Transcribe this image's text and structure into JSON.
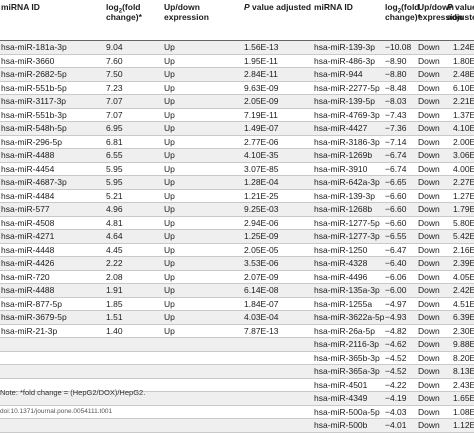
{
  "header": {
    "col1": "miRNA ID",
    "col2_main": "log",
    "col2_sub": "2",
    "col2_rest_1": "(fold",
    "col2_rest_2": "change)*",
    "col3_line1": "Up/down",
    "col3_line2": "expression",
    "col4_p": "P",
    "col4_rest": "value adjusted",
    "col5": "miRNA ID",
    "col6_main": "log",
    "col6_sub": "2",
    "col6_rest_1": "(fold",
    "col6_rest_2": "change)*",
    "col7_line1": "Up/down",
    "col7_line2": "expression",
    "col8_p": "P",
    "col8_line1": "value",
    "col8_line2": "adjusted"
  },
  "rows": [
    {
      "a_id": "hsa-miR-181a-3p",
      "a_fc": "9.04",
      "a_dir": "Up",
      "a_p": "1.56E-13",
      "b_id": "hsa-miR-139-3p",
      "b_fc": "−10.08",
      "b_dir": "Down",
      "b_p": "1.24E-"
    },
    {
      "a_id": "hsa-miR-3660",
      "a_fc": "7.60",
      "a_dir": "Up",
      "a_p": "1.95E-11",
      "b_id": "hsa-miR-486-3p",
      "b_fc": "−8.90",
      "b_dir": "Down",
      "b_p": "1.80E-"
    },
    {
      "a_id": "hsa-miR-2682-5p",
      "a_fc": "7.50",
      "a_dir": "Up",
      "a_p": "2.84E-11",
      "b_id": "hsa-miR-944",
      "b_fc": "−8.80",
      "b_dir": "Down",
      "b_p": "2.48E-"
    },
    {
      "a_id": "hsa-miR-551b-5p",
      "a_fc": "7.23",
      "a_dir": "Up",
      "a_p": "9.63E-09",
      "b_id": "hsa-miR-2277-5p",
      "b_fc": "−8.48",
      "b_dir": "Down",
      "b_p": "6.10E-"
    },
    {
      "a_id": "hsa-miR-3117-3p",
      "a_fc": "7.07",
      "a_dir": "Up",
      "a_p": "2.05E-09",
      "b_id": "hsa-miR-139-5p",
      "b_fc": "−8.03",
      "b_dir": "Down",
      "b_p": "2.21E-"
    },
    {
      "a_id": "hsa-miR-551b-3p",
      "a_fc": "7.07",
      "a_dir": "Up",
      "a_p": "7.19E-11",
      "b_id": "hsa-miR-4769-3p",
      "b_fc": "−7.43",
      "b_dir": "Down",
      "b_p": "1.37E-"
    },
    {
      "a_id": "hsa-miR-548h-5p",
      "a_fc": "6.95",
      "a_dir": "Up",
      "a_p": "1.49E-07",
      "b_id": "hsa-miR-4427",
      "b_fc": "−7.36",
      "b_dir": "Down",
      "b_p": "4.10E-"
    },
    {
      "a_id": "hsa-miR-296-5p",
      "a_fc": "6.81",
      "a_dir": "Up",
      "a_p": "2.77E-06",
      "b_id": "hsa-miR-3186-3p",
      "b_fc": "−7.14",
      "b_dir": "Down",
      "b_p": "2.00E-"
    },
    {
      "a_id": "hsa-miR-4488",
      "a_fc": "6.55",
      "a_dir": "Up",
      "a_p": "4.10E-35",
      "b_id": "hsa-miR-1269b",
      "b_fc": "−6.74",
      "b_dir": "Down",
      "b_p": "3.06E-"
    },
    {
      "a_id": "hsa-miR-4454",
      "a_fc": "5.95",
      "a_dir": "Up",
      "a_p": "3.07E-85",
      "b_id": "hsa-miR-3910",
      "b_fc": "−6.74",
      "b_dir": "Down",
      "b_p": "4.00E-"
    },
    {
      "a_id": "hsa-miR-4687-3p",
      "a_fc": "5.95",
      "a_dir": "Up",
      "a_p": "1.28E-04",
      "b_id": "hsa-miR-642a-3p",
      "b_fc": "−6.65",
      "b_dir": "Down",
      "b_p": "2.27E-"
    },
    {
      "a_id": "hsa-miR-4484",
      "a_fc": "5.21",
      "a_dir": "Up",
      "a_p": "1.21E-25",
      "b_id": "hsa-miR-139-3p",
      "b_fc": "−6.60",
      "b_dir": "Down",
      "b_p": "1.27E-"
    },
    {
      "a_id": "hsa-miR-577",
      "a_fc": "4.96",
      "a_dir": "Up",
      "a_p": "9.25E-03",
      "b_id": "hsa-miR-1268b",
      "b_fc": "−6.60",
      "b_dir": "Down",
      "b_p": "1.79E-"
    },
    {
      "a_id": "hsa-miR-4508",
      "a_fc": "4.81",
      "a_dir": "Up",
      "a_p": "2.94E-06",
      "b_id": "hsa-miR-1277-5p",
      "b_fc": "−6.60",
      "b_dir": "Down",
      "b_p": "5.80E-"
    },
    {
      "a_id": "hsa-miR-4271",
      "a_fc": "4.64",
      "a_dir": "Up",
      "a_p": "1.25E-09",
      "b_id": "hsa-miR-1277-3p",
      "b_fc": "−6.55",
      "b_dir": "Down",
      "b_p": "5.42E-"
    },
    {
      "a_id": "hsa-miR-4448",
      "a_fc": "4.45",
      "a_dir": "Up",
      "a_p": "2.05E-05",
      "b_id": "hsa-miR-1250",
      "b_fc": "−6.47",
      "b_dir": "Down",
      "b_p": "2.16E-"
    },
    {
      "a_id": "hsa-miR-4426",
      "a_fc": "2.22",
      "a_dir": "Up",
      "a_p": "3.53E-06",
      "b_id": "hsa-miR-4328",
      "b_fc": "−6.40",
      "b_dir": "Down",
      "b_p": "2.39E-"
    },
    {
      "a_id": "hsa-miR-720",
      "a_fc": "2.08",
      "a_dir": "Up",
      "a_p": "2.07E-09",
      "b_id": "hsa-miR-4496",
      "b_fc": "−6.06",
      "b_dir": "Down",
      "b_p": "4.05E-"
    },
    {
      "a_id": "hsa-miR-4488",
      "a_fc": "1.91",
      "a_dir": "Up",
      "a_p": "6.14E-08",
      "b_id": "hsa-miR-135a-3p",
      "b_fc": "−6.00",
      "b_dir": "Down",
      "b_p": "2.42E-"
    },
    {
      "a_id": "hsa-miR-877-5p",
      "a_fc": "1.85",
      "a_dir": "Up",
      "a_p": "1.84E-07",
      "b_id": "hsa-miR-1255a",
      "b_fc": "−4.97",
      "b_dir": "Down",
      "b_p": "4.51E-"
    },
    {
      "a_id": "hsa-miR-3679-5p",
      "a_fc": "1.51",
      "a_dir": "Up",
      "a_p": "4.03E-04",
      "b_id": "hsa-miR-3622a-5p",
      "b_fc": "−4.93",
      "b_dir": "Down",
      "b_p": "6.39E-"
    },
    {
      "a_id": "hsa-miR-21-3p",
      "a_fc": "1.40",
      "a_dir": "Up",
      "a_p": "7.87E-13",
      "b_id": "hsa-miR-26a-5p",
      "b_fc": "−4.82",
      "b_dir": "Down",
      "b_p": "2.30E-"
    },
    {
      "a_id": "",
      "a_fc": "",
      "a_dir": "",
      "a_p": "",
      "b_id": "hsa-miR-2116-3p",
      "b_fc": "−4.62",
      "b_dir": "Down",
      "b_p": "9.88E-"
    },
    {
      "a_id": "",
      "a_fc": "",
      "a_dir": "",
      "a_p": "",
      "b_id": "hsa-miR-365b-3p",
      "b_fc": "−4.52",
      "b_dir": "Down",
      "b_p": "8.20E-"
    },
    {
      "a_id": "",
      "a_fc": "",
      "a_dir": "",
      "a_p": "",
      "b_id": "hsa-miR-365a-3p",
      "b_fc": "−4.52",
      "b_dir": "Down",
      "b_p": "8.13E-"
    },
    {
      "a_id": "",
      "a_fc": "",
      "a_dir": "",
      "a_p": "",
      "b_id": "hsa-miR-4501",
      "b_fc": "−4.22",
      "b_dir": "Down",
      "b_p": "2.43E-"
    },
    {
      "a_id": "",
      "a_fc": "",
      "a_dir": "",
      "a_p": "",
      "b_id": "hsa-miR-4349",
      "b_fc": "−4.19",
      "b_dir": "Down",
      "b_p": "1.65E-"
    },
    {
      "a_id": "",
      "a_fc": "",
      "a_dir": "",
      "a_p": "",
      "b_id": "hsa-miR-500a-5p",
      "b_fc": "−4.03",
      "b_dir": "Down",
      "b_p": "1.08E-"
    },
    {
      "a_id": "",
      "a_fc": "",
      "a_dir": "",
      "a_p": "",
      "b_id": "hsa-miR-500b",
      "b_fc": "−4.01",
      "b_dir": "Down",
      "b_p": "1.12E-"
    }
  ],
  "footer": {
    "note": "Note: *fold change = (HepG2/DOX)/HepG2.",
    "doi": "doi:10.1371/journal.pone.0054111.t001"
  }
}
